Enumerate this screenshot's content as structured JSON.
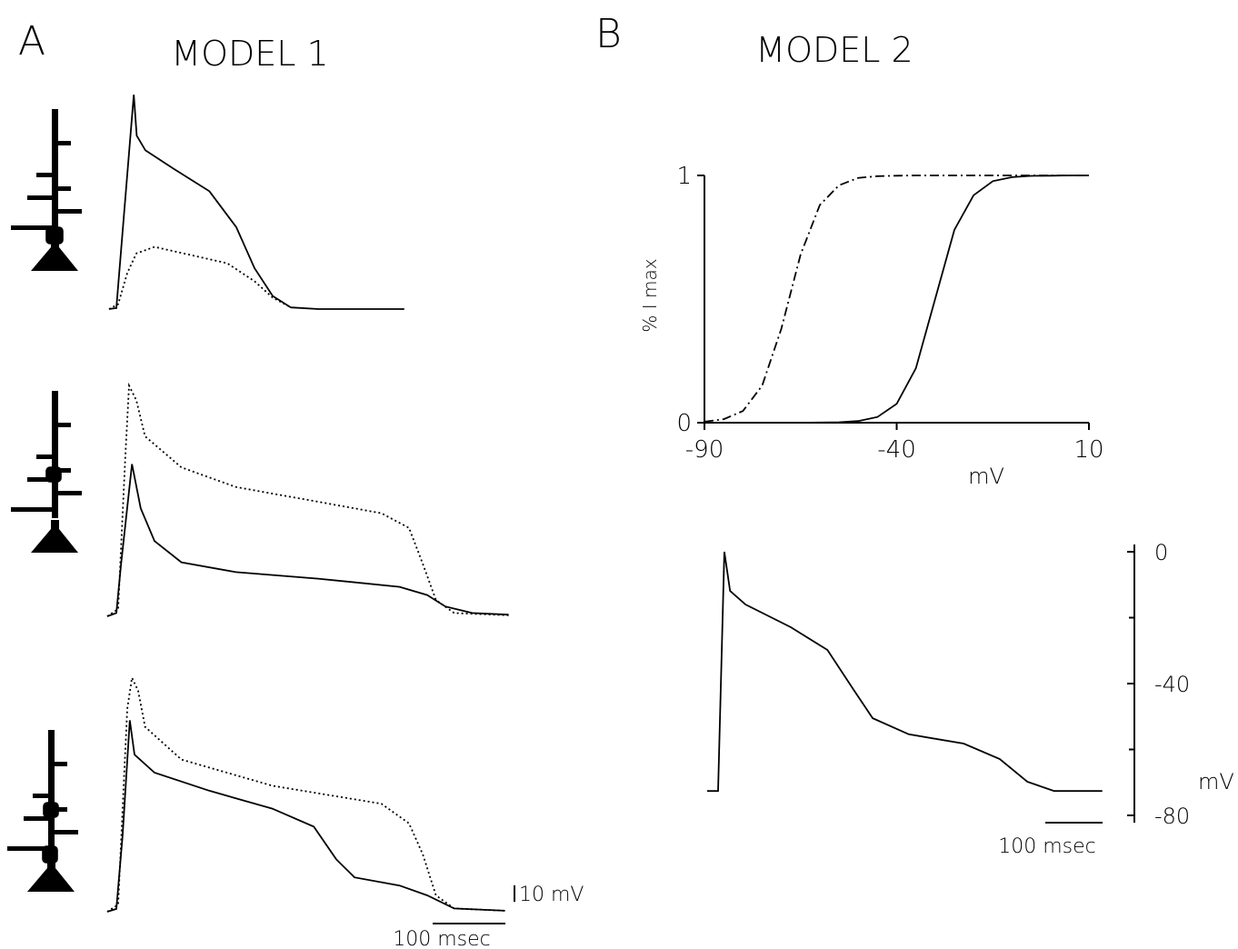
{
  "panels": [
    {
      "letter": "A",
      "title": "MODEL 1"
    },
    {
      "letter": "B",
      "title": "MODEL 2"
    }
  ],
  "chart_data": [
    {
      "type": "line",
      "series": [
        {
          "style": "solid",
          "color": "#000000",
          "x": [
            0,
            10,
            34,
            38,
            50,
            88,
            138,
            175,
            200,
            225,
            250,
            288,
            406
          ],
          "values": [
            0,
            0.6,
            131,
            106,
            97,
            86,
            72,
            50,
            25,
            8,
            1,
            0,
            0
          ]
        },
        {
          "style": "dotted",
          "color": "#000000",
          "x": [
            0,
            12.5,
            25,
            37.5,
            62.5,
            112.5,
            162.5,
            200,
            225,
            250
          ],
          "values": [
            0,
            3,
            22,
            34,
            38,
            33,
            28,
            17,
            7,
            1
          ]
        }
      ]
    },
    {
      "type": "line",
      "series": [
        {
          "style": "solid",
          "color": "#000000",
          "x": [
            0,
            12.5,
            19,
            34,
            46,
            65,
            102,
            177,
            290,
            402,
            440,
            465,
            502,
            552
          ],
          "values": [
            0,
            2,
            32,
            93,
            66,
            46,
            33,
            27,
            23,
            18,
            13,
            6,
            2,
            1
          ]
        },
        {
          "style": "dotted",
          "color": "#000000",
          "x": [
            0,
            15,
            25,
            30,
            40,
            52,
            102,
            177,
            290,
            377,
            415,
            434,
            452,
            477,
            552
          ],
          "values": [
            0,
            4.4,
            99,
            141,
            132,
            110,
            91,
            79,
            70,
            63,
            54,
            32,
            10,
            2,
            0.6
          ]
        }
      ]
    },
    {
      "type": "line",
      "series": [
        {
          "style": "solid",
          "color": "#000000",
          "x": [
            0,
            12.5,
            21,
            31,
            37.5,
            65,
            140,
            227,
            284,
            315,
            340,
            402,
            440,
            477,
            547
          ],
          "values": [
            0,
            1.7,
            46,
            117,
            96,
            85,
            74,
            63,
            52,
            32,
            21,
            16,
            10,
            2,
            0.6
          ]
        },
        {
          "style": "dotted",
          "color": "#000000",
          "x": [
            0,
            15,
            27.5,
            34,
            42.5,
            52,
            102,
            227,
            377,
            415,
            434,
            452,
            477,
            547
          ],
          "values": [
            0,
            4.4,
            124,
            143,
            135,
            113,
            93,
            77,
            66,
            54,
            35,
            10,
            2,
            0.6
          ]
        }
      ],
      "scale_bar": {
        "x": 100,
        "x_label": "100 msec",
        "y": 10,
        "y_label": "10 mV"
      }
    },
    {
      "type": "line",
      "xlabel": "mV",
      "ylabel": "% I max",
      "x": [
        -90,
        -85,
        -80,
        -75,
        -70,
        -65,
        -60,
        -55,
        -50,
        -45,
        -40,
        -35,
        -30,
        -25,
        -20,
        -15,
        -10,
        -5,
        0,
        5,
        10
      ],
      "series": [
        {
          "style": "solid",
          "color": "#000000",
          "values": [
            0,
            0,
            0,
            0,
            0,
            0,
            0.0006,
            0.0019,
            0.0067,
            0.023,
            0.076,
            0.22,
            0.5,
            0.78,
            0.92,
            0.977,
            0.993,
            0.998,
            0.999,
            1,
            1
          ]
        },
        {
          "style": "dashdot",
          "color": "#000000",
          "values": [
            0.004,
            0.014,
            0.047,
            0.15,
            0.38,
            0.68,
            0.88,
            0.96,
            0.99,
            0.997,
            0.999,
            1,
            1,
            1,
            1,
            1,
            1,
            1,
            1,
            1,
            1
          ]
        }
      ],
      "xlim": [
        -90,
        10
      ],
      "ylim": [
        0,
        1
      ],
      "xticks": [
        -90,
        -40,
        10
      ],
      "yticks": [
        0,
        1
      ]
    },
    {
      "type": "line",
      "ylabel": "mV",
      "series": [
        {
          "style": "solid",
          "color": "#000000",
          "x": [
            0,
            19,
            30,
            40,
            67,
            146,
            210,
            257,
            289,
            352,
            448,
            511,
            559,
            606,
            690
          ],
          "values": [
            -72.6,
            -72.6,
            0,
            -11.9,
            -16,
            -22.9,
            -29.8,
            -42.2,
            -50.5,
            -55.4,
            -58.2,
            -62.9,
            -69.8,
            -72.6,
            -72.6
          ]
        }
      ],
      "ylim": [
        -80,
        0
      ],
      "yticks": [
        0,
        -40,
        -80
      ],
      "yminor": [
        -20,
        -60
      ],
      "scale_bar": {
        "x": 100,
        "x_label": "100 msec"
      }
    }
  ]
}
